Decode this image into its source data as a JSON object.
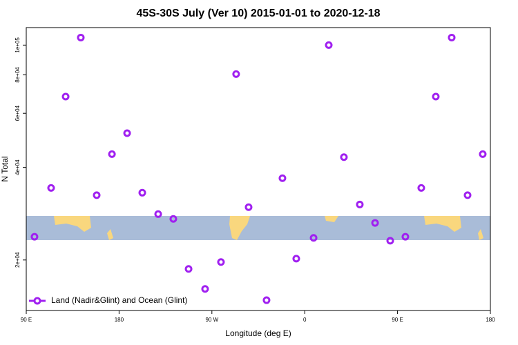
{
  "chart_data": {
    "type": "scatter",
    "title": "45S-30S July (Ver 10)   2015-01-01 to 2020-12-18",
    "xlabel": "Longitude (deg E)",
    "ylabel": "N Total",
    "series": [
      {
        "name": "Land (Nadir&Glint) and Ocean (Glint)",
        "color": "#a020f0",
        "x": [
          98.0,
          114.1,
          128.2,
          142.9,
          158.3,
          173.1,
          187.8,
          202.5,
          217.9,
          232.6,
          247.4,
          263.4,
          278.8,
          293.5,
          305.6,
          323.0,
          338.4,
          351.8,
          368.6,
          383.3,
          398.0,
          413.4,
          428.2,
          442.9,
          457.6,
          473.0,
          487.1,
          502.5,
          517.9,
          532.6
        ],
        "values": [
          23800,
          34300,
          68000,
          105800,
          32500,
          44200,
          51700,
          33100,
          28200,
          27200,
          18700,
          16100,
          19700,
          80500,
          29700,
          14800,
          36900,
          20200,
          23600,
          100000,
          43200,
          30300,
          26400,
          23100,
          23800,
          34300,
          68000,
          105800,
          32500,
          44200
        ]
      }
    ],
    "xlim": [
      90,
      540
    ],
    "xticks": [
      {
        "value": 90,
        "label": "90 E"
      },
      180,
      {
        "value": 270,
        "label": "90 W"
      },
      {
        "value": 360,
        "label": "0"
      },
      {
        "value": 450,
        "label": "90 E"
      },
      {
        "value": 540,
        "label": "180"
      }
    ],
    "ylim": [
      13700,
      114000
    ],
    "ylog": true,
    "yticks": [
      {
        "value": 20000,
        "label": "2e+04"
      },
      {
        "value": 40000,
        "label": "4e+04"
      },
      {
        "value": 60000,
        "label": "6e+04"
      },
      {
        "value": 80000,
        "label": "8e+04"
      },
      {
        "value": 100000,
        "label": "1e+05"
      }
    ],
    "legend": "bottom-left"
  }
}
